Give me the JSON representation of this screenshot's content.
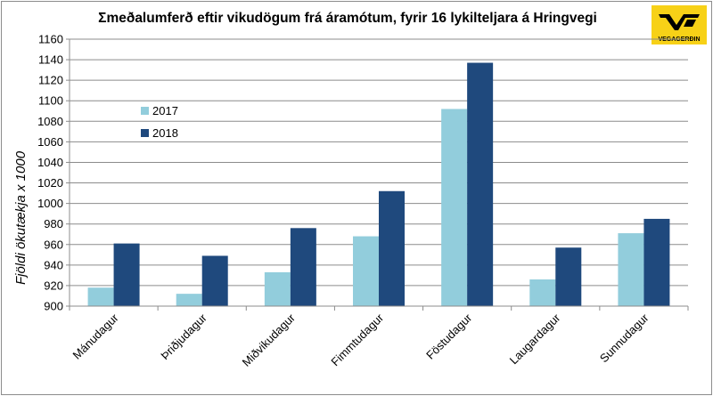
{
  "chart_data": {
    "type": "bar",
    "title": "Σmeðalumferð eftir vikudögum frá áramótum, fyrir 16 lykilteljara á Hringvegi",
    "xlabel": "",
    "ylabel": "Fjöldi ökutækja x 1000",
    "categories": [
      "Mánudagur",
      "Þriðjudagur",
      "Miðvikudagur",
      "Fimmtudagur",
      "Föstudagur",
      "Laugardagur",
      "Sunnudagur"
    ],
    "series": [
      {
        "name": "2017",
        "color": "#92cddc",
        "values": [
          918,
          912,
          933,
          968,
          1092,
          926,
          971
        ]
      },
      {
        "name": "2018",
        "color": "#1f497d",
        "values": [
          961,
          949,
          976,
          1012,
          1137,
          957,
          985
        ]
      }
    ],
    "ylim": [
      900,
      1160
    ],
    "yticks": [
      "900",
      "920",
      "940",
      "960",
      "980",
      "1000",
      "1020",
      "1040",
      "1060",
      "1080",
      "1100",
      "1120",
      "1140",
      "1160"
    ],
    "grid": true,
    "legend_position": "top-left"
  },
  "logo": {
    "name": "vegagerdin-logo",
    "text": "VEGAGERÐIN",
    "color": "#f7d117"
  }
}
